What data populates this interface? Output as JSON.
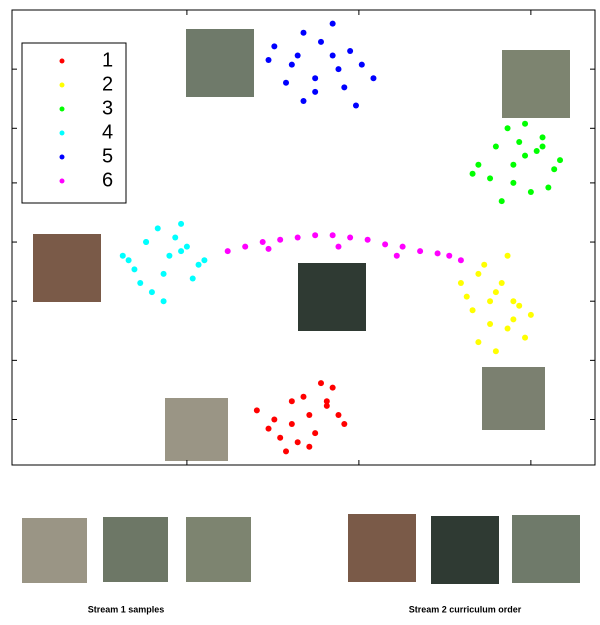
{
  "chart_data": {
    "type": "scatter",
    "xlim": [
      0,
      100
    ],
    "ylim": [
      0,
      100
    ],
    "xticks": [
      30,
      59.5,
      89
    ],
    "yticks": [
      10,
      23,
      36,
      49,
      62,
      74,
      87
    ],
    "legend": "upper-left",
    "series": [
      {
        "name": "1",
        "color": "#ff0000",
        "x": [
          42,
          45,
          48,
          51,
          54,
          57,
          46,
          49,
          52,
          55,
          44,
          50,
          53,
          47,
          56,
          51,
          48,
          54
        ],
        "values": [
          12,
          10,
          14,
          11,
          13,
          9,
          6,
          5,
          7,
          17,
          8,
          15,
          18,
          3,
          11,
          4,
          9,
          14
        ]
      },
      {
        "name": "2",
        "color": "#ffff00",
        "x": [
          77,
          80,
          83,
          86,
          89,
          79,
          82,
          85,
          88,
          78,
          81,
          84,
          87,
          80,
          83,
          86,
          82,
          85
        ],
        "values": [
          40,
          42,
          38,
          36,
          33,
          34,
          31,
          30,
          28,
          37,
          44,
          40,
          35,
          27,
          25,
          32,
          36,
          46
        ]
      },
      {
        "name": "3",
        "color": "#00ff00",
        "x": [
          80,
          83,
          86,
          88,
          91,
          93,
          85,
          89,
          82,
          90,
          94,
          87,
          84,
          79,
          92,
          88,
          86,
          91
        ],
        "values": [
          66,
          70,
          62,
          68,
          72,
          65,
          74,
          60,
          63,
          69,
          67,
          71,
          58,
          64,
          61,
          75,
          66,
          70
        ]
      },
      {
        "name": "4",
        "color": "#00ffff",
        "x": [
          20,
          23,
          26,
          29,
          32,
          22,
          25,
          28,
          31,
          19,
          24,
          27,
          30,
          33,
          21,
          26,
          29,
          23
        ],
        "values": [
          45,
          49,
          42,
          47,
          44,
          40,
          52,
          50,
          41,
          46,
          38,
          46,
          48,
          45,
          43,
          36,
          53,
          49
        ]
      },
      {
        "name": "5",
        "color": "#0000ff",
        "x": [
          45,
          48,
          50,
          52,
          55,
          57,
          60,
          47,
          53,
          58,
          50,
          55,
          62,
          44,
          52,
          56,
          49,
          59
        ],
        "values": [
          92,
          88,
          95,
          85,
          90,
          83,
          88,
          84,
          93,
          91,
          80,
          97,
          85,
          89,
          82,
          87,
          90,
          79
        ]
      },
      {
        "name": "6",
        "color": "#ff00ff",
        "x": [
          37,
          40,
          43,
          46,
          49,
          52,
          55,
          58,
          61,
          64,
          67,
          70,
          73,
          75,
          77,
          44,
          56,
          66
        ],
        "values": [
          47,
          48,
          49,
          49.5,
          50,
          50.5,
          50.5,
          50,
          49.5,
          48.5,
          48,
          47,
          46.5,
          46,
          45,
          47.5,
          48,
          46
        ]
      }
    ],
    "captions": [
      "Stream 1 samples",
      "Stream 2 curriculum order"
    ]
  }
}
